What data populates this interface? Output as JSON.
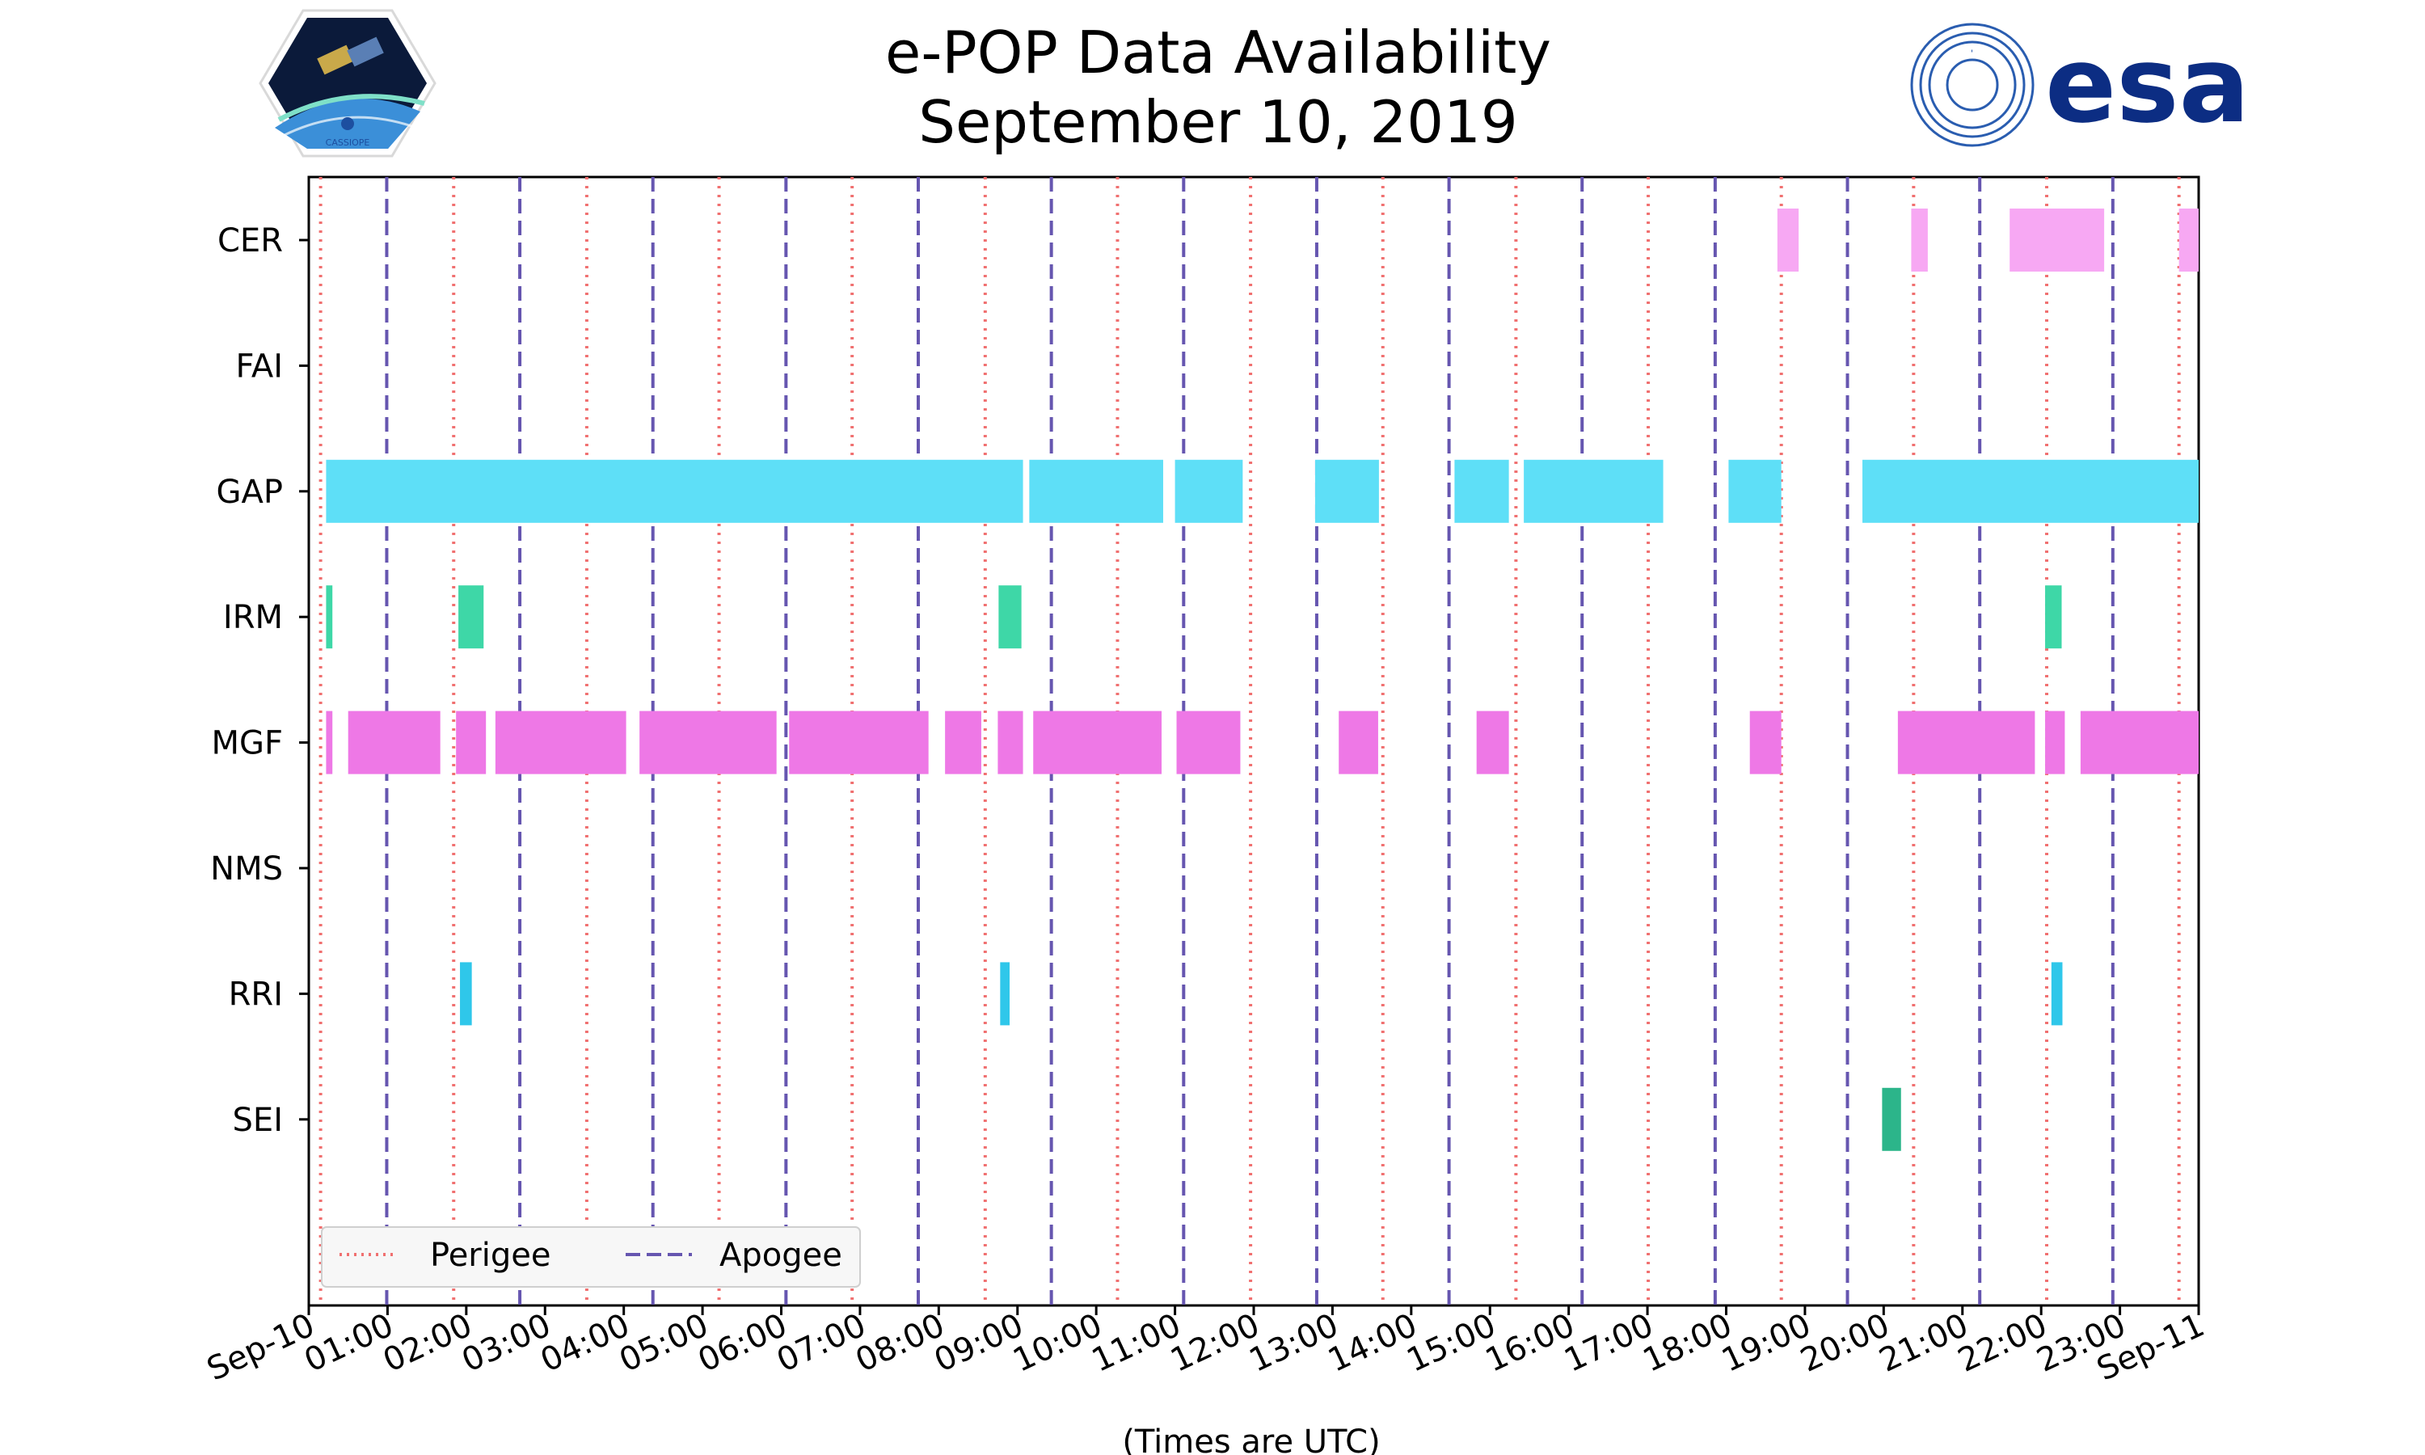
{
  "chart_data": {
    "type": "timeline",
    "title_line1": "e-POP Data Availability",
    "title_line2": "September 10, 2019",
    "xlabel": "(Times are UTC)",
    "x_range_hours": [
      0,
      24
    ],
    "x_ticks": [
      "Sep-10",
      "01:00",
      "02:00",
      "03:00",
      "04:00",
      "05:00",
      "06:00",
      "07:00",
      "08:00",
      "09:00",
      "10:00",
      "11:00",
      "12:00",
      "13:00",
      "14:00",
      "15:00",
      "16:00",
      "17:00",
      "18:00",
      "19:00",
      "20:00",
      "21:00",
      "22:00",
      "23:00",
      "Sep-11"
    ],
    "instruments": [
      "CER",
      "FAI",
      "GAP",
      "IRM",
      "MGF",
      "NMS",
      "RRI",
      "SEI"
    ],
    "perigee_hours": [
      0.15,
      1.84,
      3.53,
      5.21,
      6.9,
      8.59,
      10.27,
      11.96,
      13.64,
      15.33,
      17.01,
      18.7,
      20.38,
      22.07,
      23.75
    ],
    "apogee_hours": [
      0.99,
      2.68,
      4.37,
      6.06,
      7.74,
      9.43,
      11.11,
      12.8,
      14.48,
      16.17,
      17.86,
      19.54,
      21.22,
      22.91
    ],
    "intervals": {
      "CER": [
        [
          18.65,
          18.92
        ],
        [
          20.35,
          20.56
        ],
        [
          21.6,
          22.8
        ],
        [
          23.75,
          24.0
        ]
      ],
      "FAI": [],
      "GAP": [
        [
          0.22,
          9.07
        ],
        [
          9.15,
          10.85
        ],
        [
          11.0,
          11.86
        ],
        [
          12.78,
          13.59
        ],
        [
          14.55,
          15.24
        ],
        [
          15.43,
          17.2
        ],
        [
          18.03,
          18.7
        ],
        [
          19.73,
          24.0
        ]
      ],
      "IRM": [
        [
          0.22,
          0.3
        ],
        [
          1.9,
          2.22
        ],
        [
          8.76,
          9.05
        ],
        [
          22.05,
          22.26
        ]
      ],
      "MGF": [
        [
          0.22,
          0.3
        ],
        [
          0.5,
          1.67
        ],
        [
          1.87,
          2.25
        ],
        [
          2.37,
          4.03
        ],
        [
          4.2,
          5.94
        ],
        [
          6.1,
          7.87
        ],
        [
          8.08,
          8.54
        ],
        [
          8.75,
          9.07
        ],
        [
          9.2,
          10.83
        ],
        [
          11.02,
          11.83
        ],
        [
          13.08,
          13.58
        ],
        [
          14.83,
          15.24
        ],
        [
          18.3,
          18.7
        ],
        [
          20.18,
          21.92
        ],
        [
          22.05,
          22.3
        ],
        [
          22.5,
          24.0
        ]
      ],
      "NMS": [],
      "RRI": [
        [
          1.92,
          2.07
        ],
        [
          8.78,
          8.9
        ],
        [
          22.13,
          22.27
        ]
      ],
      "SEI": [
        [
          19.98,
          20.22
        ]
      ]
    },
    "colors": {
      "CER": "#f7a8f3",
      "FAI": "#8888ff",
      "GAP": "#5edff7",
      "IRM": "#3ed7a7",
      "MGF": "#ee78e6",
      "NMS": "#999999",
      "RRI": "#2fc7ea",
      "SEI": "#2cb58a"
    },
    "perigee_color": "#f07070",
    "apogee_color": "#6656b0",
    "legend": {
      "perigee": "Perigee",
      "apogee": "Apogee",
      "placement": "lower-left"
    }
  },
  "logos": {
    "left_caption": "CASSIOPE",
    "right_text": "esa",
    "right_color": "#0c2d83"
  }
}
